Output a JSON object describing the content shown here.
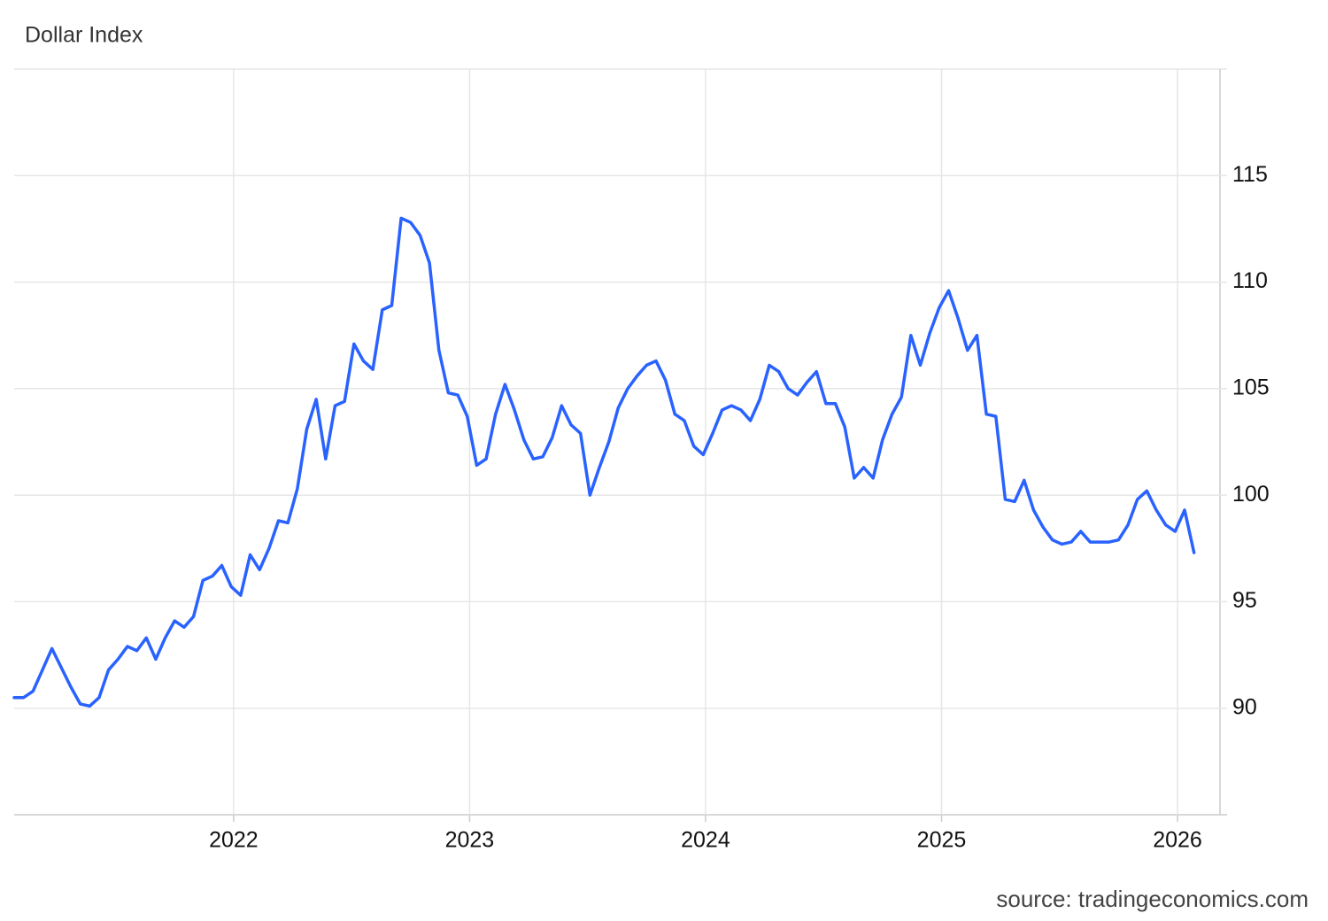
{
  "chart_data": {
    "type": "line",
    "title": "Dollar Index",
    "source": "source: tradingeconomics.com",
    "x": [
      2021.07,
      2021.11,
      2021.15,
      2021.19,
      2021.23,
      2021.27,
      2021.31,
      2021.35,
      2021.39,
      2021.43,
      2021.47,
      2021.51,
      2021.55,
      2021.59,
      2021.63,
      2021.67,
      2021.71,
      2021.75,
      2021.79,
      2021.83,
      2021.87,
      2021.91,
      2021.95,
      2021.99,
      2022.03,
      2022.07,
      2022.11,
      2022.15,
      2022.19,
      2022.23,
      2022.27,
      2022.31,
      2022.35,
      2022.39,
      2022.43,
      2022.47,
      2022.51,
      2022.55,
      2022.59,
      2022.63,
      2022.67,
      2022.71,
      2022.75,
      2022.79,
      2022.83,
      2022.87,
      2022.91,
      2022.95,
      2022.99,
      2023.03,
      2023.07,
      2023.11,
      2023.15,
      2023.19,
      2023.23,
      2023.27,
      2023.31,
      2023.35,
      2023.39,
      2023.43,
      2023.47,
      2023.51,
      2023.55,
      2023.59,
      2023.63,
      2023.67,
      2023.71,
      2023.75,
      2023.79,
      2023.83,
      2023.87,
      2023.91,
      2023.95,
      2023.99,
      2024.03,
      2024.07,
      2024.11,
      2024.15,
      2024.19,
      2024.23,
      2024.27,
      2024.31,
      2024.35,
      2024.39,
      2024.43,
      2024.47,
      2024.51,
      2024.55,
      2024.59,
      2024.63,
      2024.67,
      2024.71,
      2024.75,
      2024.79,
      2024.83,
      2024.87,
      2024.91,
      2024.95,
      2024.99,
      2025.03,
      2025.07,
      2025.11,
      2025.15,
      2025.19,
      2025.23,
      2025.27,
      2025.31,
      2025.35,
      2025.39,
      2025.43,
      2025.47,
      2025.51,
      2025.55,
      2025.59,
      2025.63,
      2025.67,
      2025.71,
      2025.75,
      2025.79,
      2025.83,
      2025.87,
      2025.91,
      2025.95,
      2025.99,
      2026.03,
      2026.07
    ],
    "series": [
      {
        "name": "Dollar Index",
        "color": "#2962ff",
        "values": [
          90.5,
          90.5,
          90.8,
          91.8,
          92.8,
          91.9,
          91.0,
          90.2,
          90.1,
          90.5,
          91.8,
          92.3,
          92.9,
          92.7,
          93.3,
          92.3,
          93.3,
          94.1,
          93.8,
          94.3,
          96.0,
          96.2,
          96.7,
          95.7,
          95.3,
          97.2,
          96.5,
          97.5,
          98.8,
          98.7,
          100.3,
          103.1,
          104.5,
          101.7,
          104.2,
          104.4,
          107.1,
          106.3,
          105.9,
          108.7,
          108.9,
          113.0,
          112.8,
          112.2,
          110.9,
          106.8,
          104.8,
          104.7,
          103.7,
          101.4,
          101.7,
          103.8,
          105.2,
          104.0,
          102.6,
          101.7,
          101.8,
          102.7,
          104.2,
          103.3,
          102.9,
          100.0,
          101.3,
          102.5,
          104.1,
          105.0,
          105.6,
          106.1,
          106.3,
          105.4,
          103.8,
          103.5,
          102.3,
          101.9,
          102.9,
          104.0,
          104.2,
          104.0,
          103.5,
          104.5,
          106.1,
          105.8,
          105.0,
          104.7,
          105.3,
          105.8,
          104.3,
          104.3,
          103.2,
          100.8,
          101.3,
          100.8,
          102.6,
          103.8,
          104.6,
          107.5,
          106.1,
          107.6,
          108.8,
          109.6,
          108.3,
          106.8,
          107.5,
          103.8,
          103.7,
          99.8,
          99.7,
          100.7,
          99.3,
          98.5,
          97.9,
          97.7,
          97.8,
          98.3,
          97.8,
          97.8,
          97.8,
          97.9,
          98.6,
          99.8,
          100.2,
          99.3,
          98.6,
          98.3,
          99.3,
          97.3
        ]
      }
    ],
    "xlim": [
      2021.07,
      2026.18
    ],
    "xticks": [
      2022,
      2023,
      2024,
      2025,
      2026
    ],
    "ylim": [
      85,
      120
    ],
    "yticks": [
      90,
      95,
      100,
      105,
      110,
      115
    ],
    "grid": true
  }
}
